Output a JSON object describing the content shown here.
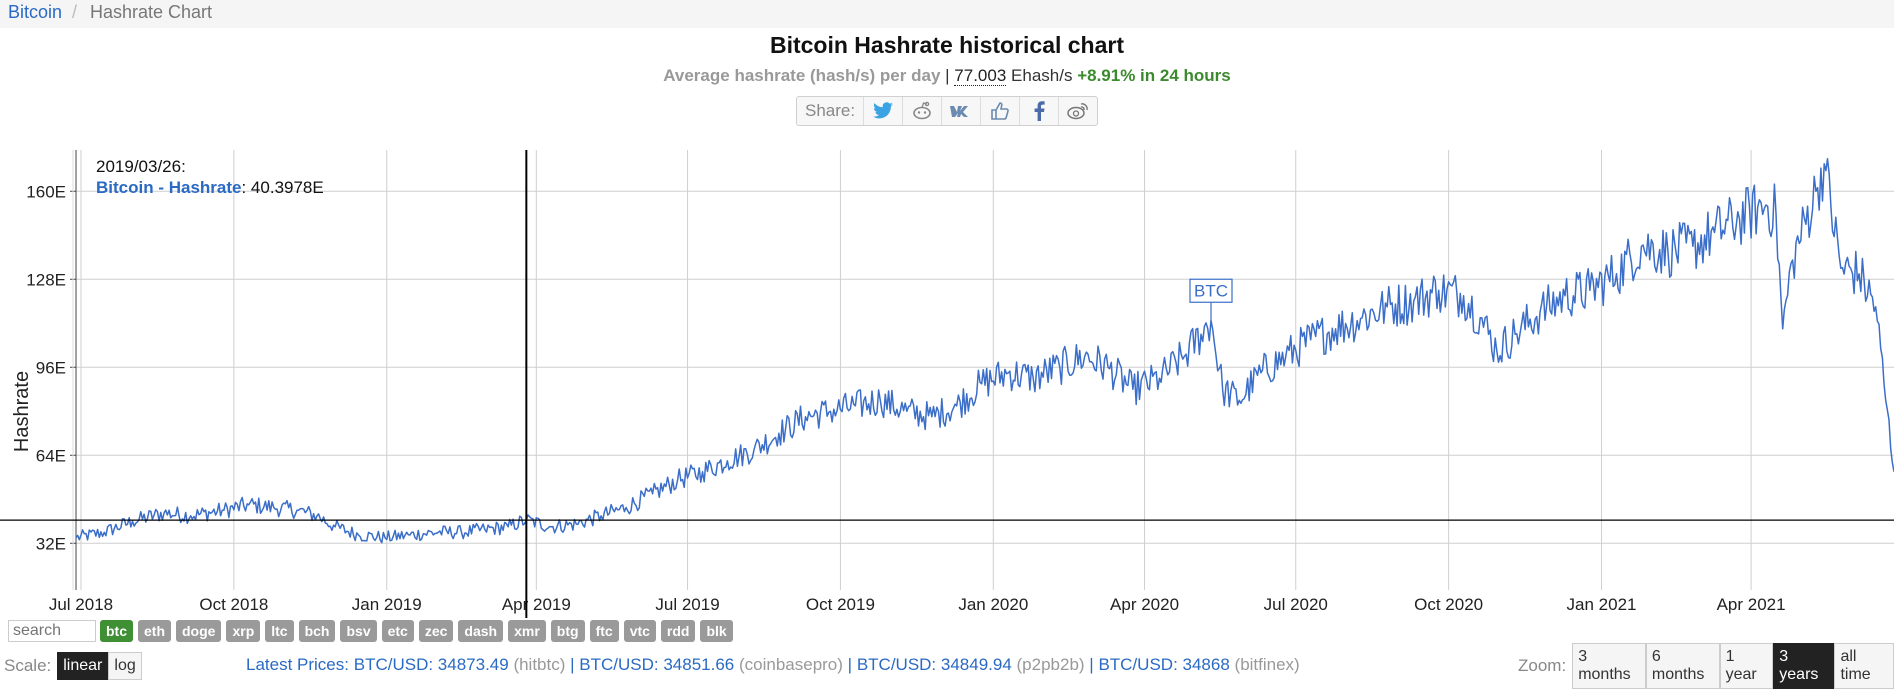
{
  "breadcrumb": {
    "home": "Bitcoin",
    "separator": "/",
    "current": "Hashrate Chart"
  },
  "header": {
    "title": "Bitcoin Hashrate historical chart",
    "subtitle_label": "Average hashrate (hash/s) per day",
    "subtitle_sep": "|",
    "current_value": "77.003",
    "current_unit": "Ehash/s",
    "change": "+8.91% in 24 hours"
  },
  "share": {
    "label": "Share:",
    "icons": [
      "twitter-icon",
      "reddit-icon",
      "vk-icon",
      "like-icon",
      "facebook-icon",
      "weibo-icon"
    ]
  },
  "tooltip": {
    "date": "2019/03/26:",
    "series": "Bitcoin - Hashrate",
    "value": ": 40.3978E"
  },
  "marker": {
    "label": "BTC"
  },
  "chart_data": {
    "type": "line",
    "title": "Bitcoin Hashrate historical chart",
    "ylabel": "Hashrate",
    "xlabel": "",
    "x_ticks": [
      "Jul 2018",
      "Oct 2018",
      "Jan 2019",
      "Apr 2019",
      "Jul 2019",
      "Oct 2019",
      "Jan 2020",
      "Apr 2020",
      "Jul 2020",
      "Oct 2020",
      "Jan 2021",
      "Apr 2021"
    ],
    "y_ticks": [
      "32E",
      "64E",
      "96E",
      "128E",
      "160E"
    ],
    "ylim": [
      15,
      175
    ],
    "x_range": [
      "2018-06-28",
      "2021-06-26"
    ],
    "grid": true,
    "crosshair": {
      "date": "2019-03-26",
      "value": 40.3978
    },
    "annotation": {
      "date": "2020-05-11",
      "text": "BTC"
    },
    "series": [
      {
        "name": "Bitcoin - Hashrate",
        "color": "#3b6ec8",
        "points": [
          [
            "2018-06-28",
            34
          ],
          [
            "2018-07-15",
            36
          ],
          [
            "2018-08-01",
            40
          ],
          [
            "2018-08-20",
            43
          ],
          [
            "2018-09-05",
            42
          ],
          [
            "2018-09-25",
            44
          ],
          [
            "2018-10-10",
            46
          ],
          [
            "2018-10-25",
            45
          ],
          [
            "2018-11-08",
            44
          ],
          [
            "2018-11-20",
            42
          ],
          [
            "2018-12-01",
            38
          ],
          [
            "2018-12-15",
            35
          ],
          [
            "2018-12-31",
            34
          ],
          [
            "2019-01-15",
            35
          ],
          [
            "2019-02-01",
            36
          ],
          [
            "2019-02-15",
            36
          ],
          [
            "2019-03-01",
            37
          ],
          [
            "2019-03-15",
            38
          ],
          [
            "2019-03-26",
            40.4
          ],
          [
            "2019-04-10",
            38
          ],
          [
            "2019-04-25",
            39
          ],
          [
            "2019-05-10",
            42
          ],
          [
            "2019-05-25",
            45
          ],
          [
            "2019-06-10",
            50
          ],
          [
            "2019-06-25",
            55
          ],
          [
            "2019-07-10",
            58
          ],
          [
            "2019-07-25",
            62
          ],
          [
            "2019-08-10",
            66
          ],
          [
            "2019-08-25",
            72
          ],
          [
            "2019-09-10",
            78
          ],
          [
            "2019-09-25",
            80
          ],
          [
            "2019-10-10",
            82
          ],
          [
            "2019-10-25",
            84
          ],
          [
            "2019-11-10",
            80
          ],
          [
            "2019-11-25",
            78
          ],
          [
            "2019-12-10",
            82
          ],
          [
            "2019-12-25",
            90
          ],
          [
            "2020-01-10",
            94
          ],
          [
            "2020-01-25",
            92
          ],
          [
            "2020-02-10",
            96
          ],
          [
            "2020-02-25",
            100
          ],
          [
            "2020-03-10",
            96
          ],
          [
            "2020-03-25",
            88
          ],
          [
            "2020-04-10",
            92
          ],
          [
            "2020-04-25",
            100
          ],
          [
            "2020-05-05",
            108
          ],
          [
            "2020-05-11",
            113
          ],
          [
            "2020-05-18",
            88
          ],
          [
            "2020-05-28",
            84
          ],
          [
            "2020-06-10",
            94
          ],
          [
            "2020-06-25",
            100
          ],
          [
            "2020-07-10",
            106
          ],
          [
            "2020-07-25",
            110
          ],
          [
            "2020-08-10",
            114
          ],
          [
            "2020-08-25",
            118
          ],
          [
            "2020-09-10",
            120
          ],
          [
            "2020-09-25",
            124
          ],
          [
            "2020-10-10",
            122
          ],
          [
            "2020-10-20",
            114
          ],
          [
            "2020-10-30",
            102
          ],
          [
            "2020-11-10",
            108
          ],
          [
            "2020-11-25",
            116
          ],
          [
            "2020-12-10",
            122
          ],
          [
            "2020-12-25",
            124
          ],
          [
            "2021-01-10",
            130
          ],
          [
            "2021-01-25",
            140
          ],
          [
            "2021-02-10",
            138
          ],
          [
            "2021-02-25",
            140
          ],
          [
            "2021-03-10",
            145
          ],
          [
            "2021-03-25",
            150
          ],
          [
            "2021-04-10",
            155
          ],
          [
            "2021-04-16",
            152
          ],
          [
            "2021-04-20",
            110
          ],
          [
            "2021-04-26",
            135
          ],
          [
            "2021-05-10",
            160
          ],
          [
            "2021-05-15",
            170
          ],
          [
            "2021-05-25",
            132
          ],
          [
            "2021-06-05",
            130
          ],
          [
            "2021-06-15",
            118
          ],
          [
            "2021-06-20",
            90
          ],
          [
            "2021-06-26",
            58
          ]
        ]
      }
    ]
  },
  "filters": {
    "search_placeholder": "search",
    "coins": [
      "btc",
      "eth",
      "doge",
      "xrp",
      "ltc",
      "bch",
      "bsv",
      "etc",
      "zec",
      "dash",
      "xmr",
      "btg",
      "ftc",
      "vtc",
      "rdd",
      "blk"
    ],
    "active": "btc"
  },
  "scale": {
    "label": "Scale:",
    "options": [
      "linear",
      "log"
    ],
    "active": "linear"
  },
  "prices": {
    "lead": "Latest Prices:",
    "items": [
      {
        "pair": "BTC/USD: 34873.49",
        "source": "(hitbtc)"
      },
      {
        "pair": "BTC/USD: 34851.66",
        "source": "(coinbasepro)"
      },
      {
        "pair": "BTC/USD: 34849.94",
        "source": "(p2pb2b)"
      },
      {
        "pair": "BTC/USD: 34868",
        "source": "(bitfinex)"
      }
    ]
  },
  "zoom": {
    "label": "Zoom:",
    "options": [
      "3 months",
      "6 months",
      "1 year",
      "3 years",
      "all time"
    ],
    "active": "3 years"
  }
}
